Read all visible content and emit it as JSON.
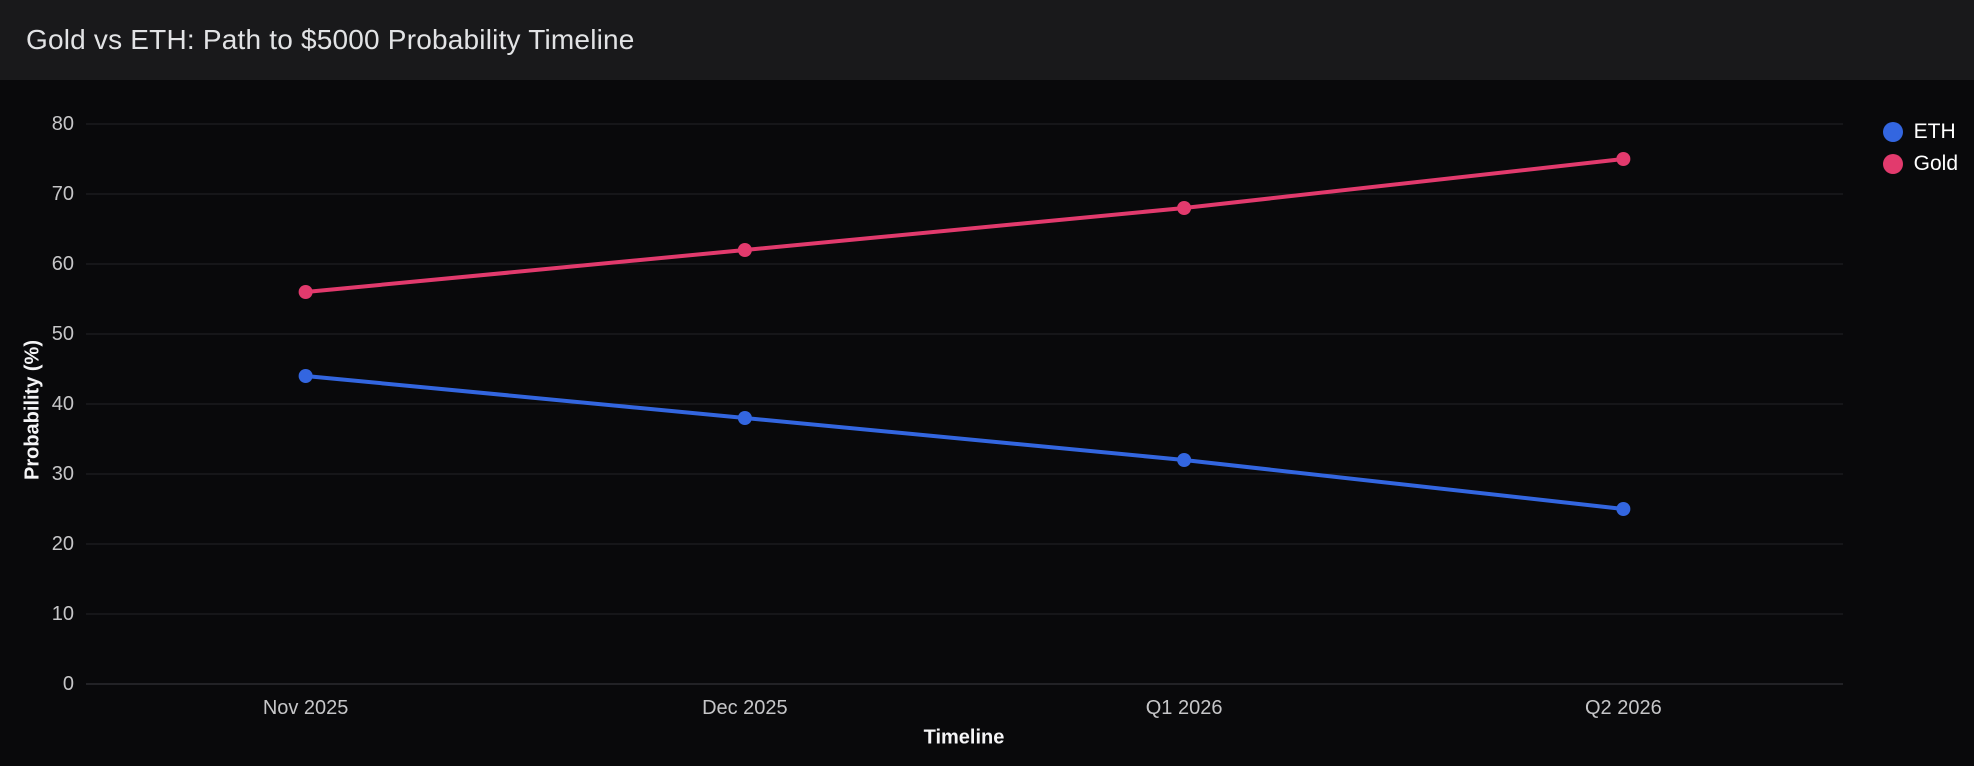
{
  "header": {
    "title": "Gold vs ETH: Path to $5000 Probability Timeline"
  },
  "chart_data": {
    "type": "line",
    "title": "Gold vs ETH: Path to $5000 Probability Timeline",
    "categories": [
      "Nov 2025",
      "Dec 2025",
      "Q1 2026",
      "Q2 2026"
    ],
    "series": [
      {
        "name": "ETH",
        "color": "#3366e0",
        "values": [
          44,
          38,
          32,
          25
        ]
      },
      {
        "name": "Gold",
        "color": "#e23a6d",
        "values": [
          56,
          62,
          68,
          75
        ]
      }
    ],
    "xlabel": "Timeline",
    "ylabel": "Probability (%)",
    "ylim": [
      0,
      80
    ],
    "yticks": [
      0,
      10,
      20,
      30,
      40,
      50,
      60,
      70,
      80
    ],
    "grid": true,
    "legend_position": "top-right",
    "theme": {
      "background": "#09090b",
      "header_background": "#19191b",
      "grid_color": "#232327",
      "axis_line_color": "#3c3c42",
      "tick_label_color": "#c6c6c8",
      "axis_title_color": "#f5f5f7",
      "title_color": "#e2e3e5",
      "legend_text_color": "#ffffff"
    }
  }
}
